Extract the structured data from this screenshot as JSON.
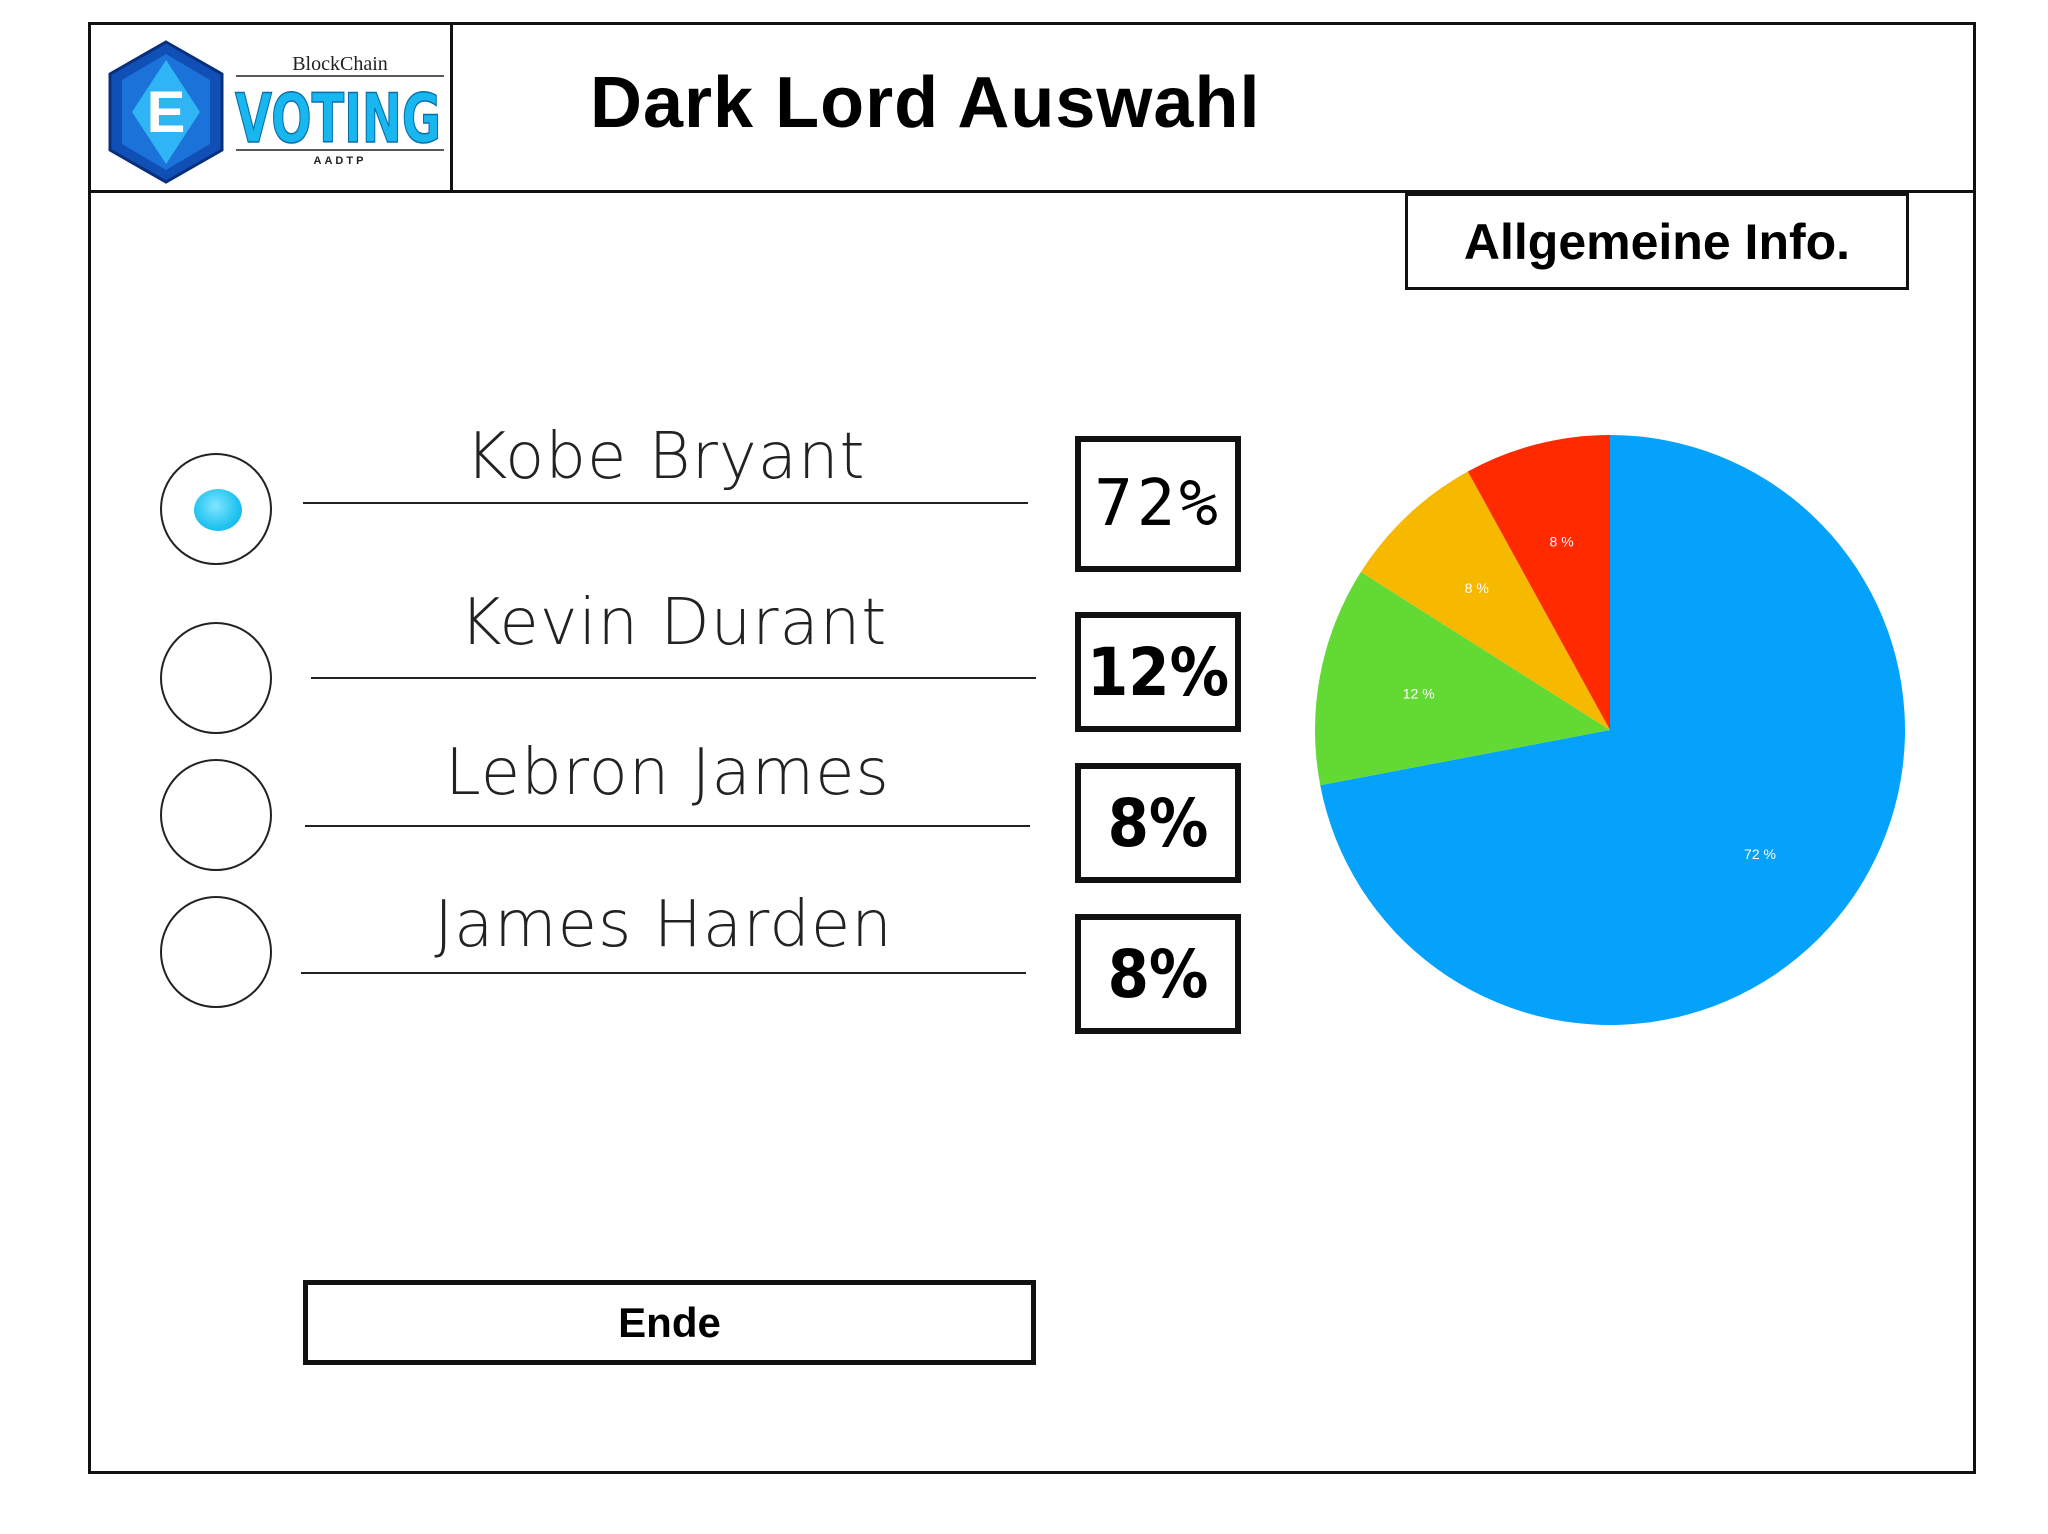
{
  "header": {
    "title": "Dark Lord Auswahl",
    "logo": {
      "top_text": "BlockChain",
      "letter": "E",
      "main_text": "VOTING",
      "sub_text": "AADTP"
    }
  },
  "info_button": {
    "label": "Allgemeine Info."
  },
  "candidates": [
    {
      "name": "Kobe Bryant",
      "percent_label": "72%",
      "selected": true
    },
    {
      "name": "Kevin Durant",
      "percent_label": "12%",
      "selected": false
    },
    {
      "name": "Lebron James",
      "percent_label": "8%",
      "selected": false
    },
    {
      "name": "James Harden",
      "percent_label": "8%",
      "selected": false
    }
  ],
  "end_button": {
    "label": "Ende"
  },
  "chart_data": {
    "type": "pie",
    "slices": [
      {
        "value": 72,
        "label": "72 %",
        "color": "#04a2fb"
      },
      {
        "value": 12,
        "label": "12 %",
        "color": "#63d934"
      },
      {
        "value": 8,
        "label": "8 %",
        "color": "#f7b800"
      },
      {
        "value": 8,
        "label": "8 %",
        "color": "#ff2a00"
      }
    ]
  }
}
